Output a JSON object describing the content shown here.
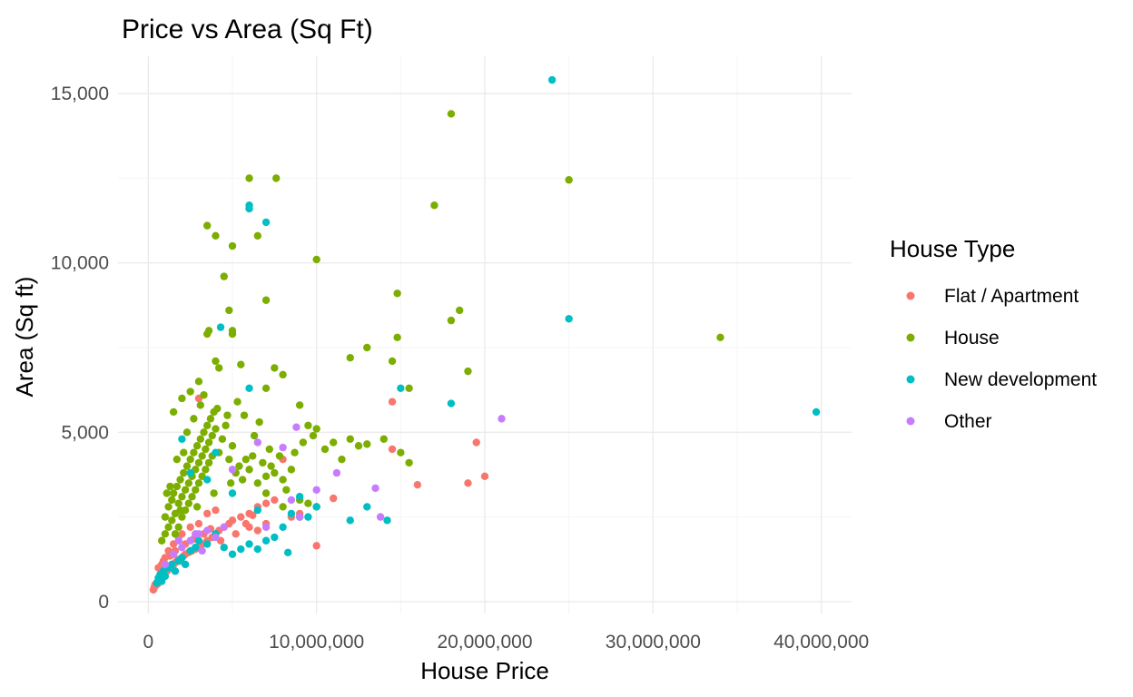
{
  "chart_data": {
    "type": "scatter",
    "title": "Price vs Area (Sq Ft)",
    "xlabel": "House Price",
    "ylabel": "Area (Sq ft)",
    "xlim": [
      -1800000,
      41800000
    ],
    "ylim": [
      -350,
      16100
    ],
    "x_ticks": [
      0,
      10000000,
      20000000,
      30000000,
      40000000
    ],
    "x_tick_labels": [
      "0",
      "10,000,000",
      "20,000,000",
      "30,000,000",
      "40,000,000"
    ],
    "y_ticks": [
      0,
      5000,
      10000,
      15000
    ],
    "y_tick_labels": [
      "0",
      "5,000",
      "10,000",
      "15,000"
    ],
    "grid": true,
    "legend": {
      "title": "House Type",
      "position": "right"
    },
    "series": [
      {
        "name": "Flat / Apartment",
        "color": "#F8766D",
        "points": [
          [
            300000,
            350
          ],
          [
            350000,
            420
          ],
          [
            400000,
            500
          ],
          [
            450000,
            480
          ],
          [
            500000,
            560
          ],
          [
            550000,
            520
          ],
          [
            600000,
            640
          ],
          [
            650000,
            600
          ],
          [
            700000,
            700
          ],
          [
            750000,
            680
          ],
          [
            800000,
            760
          ],
          [
            850000,
            720
          ],
          [
            900000,
            820
          ],
          [
            950000,
            780
          ],
          [
            1000000,
            880
          ],
          [
            1100000,
            900
          ],
          [
            1200000,
            950
          ],
          [
            1300000,
            1000
          ],
          [
            1400000,
            1050
          ],
          [
            1500000,
            1100
          ],
          [
            1600000,
            1150
          ],
          [
            1700000,
            1200
          ],
          [
            1800000,
            1250
          ],
          [
            1900000,
            1200
          ],
          [
            2000000,
            1300
          ],
          [
            2100000,
            1350
          ],
          [
            2200000,
            1400
          ],
          [
            2400000,
            1450
          ],
          [
            2600000,
            1500
          ],
          [
            2800000,
            1550
          ],
          [
            3000000,
            1600
          ],
          [
            3200000,
            1700
          ],
          [
            3500000,
            1800
          ],
          [
            3800000,
            1900
          ],
          [
            4000000,
            2000
          ],
          [
            4200000,
            2100
          ],
          [
            4500000,
            2200
          ],
          [
            4800000,
            2300
          ],
          [
            5000000,
            2400
          ],
          [
            5500000,
            2500
          ],
          [
            6000000,
            2600
          ],
          [
            6500000,
            2800
          ],
          [
            7000000,
            2900
          ],
          [
            7500000,
            3000
          ],
          [
            800000,
            1100
          ],
          [
            1000000,
            1300
          ],
          [
            1200000,
            1500
          ],
          [
            1500000,
            1700
          ],
          [
            1800000,
            1900
          ],
          [
            2000000,
            2000
          ],
          [
            2500000,
            2200
          ],
          [
            3000000,
            2300
          ],
          [
            3000000,
            6000
          ],
          [
            3500000,
            2600
          ],
          [
            4000000,
            2700
          ],
          [
            6000000,
            2200
          ],
          [
            6500000,
            2100
          ],
          [
            7000000,
            2300
          ],
          [
            8000000,
            4200
          ],
          [
            8500000,
            2500
          ],
          [
            9000000,
            2600
          ],
          [
            10000000,
            1650
          ],
          [
            11000000,
            3050
          ],
          [
            14500000,
            5900
          ],
          [
            14500000,
            4500
          ],
          [
            16000000,
            3450
          ],
          [
            19000000,
            3500
          ],
          [
            19500000,
            4700
          ],
          [
            20000000,
            3700
          ],
          [
            600000,
            1000
          ],
          [
            900000,
            1200
          ],
          [
            1300000,
            1350
          ],
          [
            1600000,
            1500
          ],
          [
            2200000,
            1700
          ],
          [
            2700000,
            1850
          ],
          [
            3300000,
            2000
          ],
          [
            3700000,
            2150
          ],
          [
            4300000,
            1800
          ],
          [
            5200000,
            2000
          ],
          [
            5800000,
            2300
          ],
          [
            6200000,
            2550
          ]
        ]
      },
      {
        "name": "House",
        "color": "#7CAE00",
        "points": [
          [
            1000000,
            2500
          ],
          [
            1200000,
            2800
          ],
          [
            1400000,
            3000
          ],
          [
            1500000,
            3200
          ],
          [
            1600000,
            2600
          ],
          [
            1700000,
            3400
          ],
          [
            1800000,
            2900
          ],
          [
            1900000,
            3600
          ],
          [
            2000000,
            3100
          ],
          [
            2100000,
            3800
          ],
          [
            2200000,
            3300
          ],
          [
            2300000,
            4000
          ],
          [
            2400000,
            3500
          ],
          [
            2500000,
            4200
          ],
          [
            2600000,
            3700
          ],
          [
            2700000,
            4400
          ],
          [
            2800000,
            3900
          ],
          [
            2900000,
            4600
          ],
          [
            3000000,
            4100
          ],
          [
            3100000,
            4800
          ],
          [
            3200000,
            4300
          ],
          [
            3300000,
            5000
          ],
          [
            3400000,
            4500
          ],
          [
            3500000,
            5200
          ],
          [
            3600000,
            4700
          ],
          [
            3700000,
            5400
          ],
          [
            3800000,
            4900
          ],
          [
            3900000,
            5600
          ],
          [
            4000000,
            5100
          ],
          [
            4200000,
            4400
          ],
          [
            4400000,
            4800
          ],
          [
            4600000,
            5200
          ],
          [
            4800000,
            4200
          ],
          [
            5000000,
            4600
          ],
          [
            5200000,
            3800
          ],
          [
            5400000,
            4000
          ],
          [
            5600000,
            3600
          ],
          [
            5800000,
            4200
          ],
          [
            6000000,
            3900
          ],
          [
            6200000,
            4300
          ],
          [
            6500000,
            3500
          ],
          [
            6800000,
            4100
          ],
          [
            7000000,
            3700
          ],
          [
            7200000,
            4500
          ],
          [
            7500000,
            3800
          ],
          [
            7800000,
            4300
          ],
          [
            8000000,
            3600
          ],
          [
            8500000,
            3900
          ],
          [
            9000000,
            5800
          ],
          [
            9500000,
            5200
          ],
          [
            10000000,
            5100
          ],
          [
            11000000,
            4700
          ],
          [
            12000000,
            4800
          ],
          [
            12500000,
            4600
          ],
          [
            13000000,
            4650
          ],
          [
            14000000,
            4800
          ],
          [
            15000000,
            4400
          ],
          [
            15500000,
            4100
          ],
          [
            1500000,
            5600
          ],
          [
            2000000,
            6000
          ],
          [
            2500000,
            6200
          ],
          [
            3000000,
            6500
          ],
          [
            3500000,
            7900
          ],
          [
            3600000,
            8000
          ],
          [
            4000000,
            7100
          ],
          [
            4200000,
            6900
          ],
          [
            4500000,
            9600
          ],
          [
            4800000,
            8600
          ],
          [
            5000000,
            7900
          ],
          [
            5000000,
            8000
          ],
          [
            5500000,
            7000
          ],
          [
            6000000,
            12500
          ],
          [
            6500000,
            10800
          ],
          [
            7000000,
            8900
          ],
          [
            7000000,
            6300
          ],
          [
            7500000,
            6900
          ],
          [
            7600000,
            12500
          ],
          [
            8000000,
            6700
          ],
          [
            3500000,
            11100
          ],
          [
            4000000,
            10800
          ],
          [
            5000000,
            10500
          ],
          [
            10000000,
            10100
          ],
          [
            12000000,
            7200
          ],
          [
            13000000,
            7500
          ],
          [
            14500000,
            7100
          ],
          [
            14800000,
            9100
          ],
          [
            14800000,
            7800
          ],
          [
            15500000,
            6300
          ],
          [
            17000000,
            11700
          ],
          [
            18000000,
            14400
          ],
          [
            18000000,
            8300
          ],
          [
            18500000,
            8600
          ],
          [
            19000000,
            6800
          ],
          [
            25000000,
            12450
          ],
          [
            34000000,
            7800
          ],
          [
            800000,
            1800
          ],
          [
            1000000,
            2000
          ],
          [
            1200000,
            2200
          ],
          [
            1400000,
            2400
          ],
          [
            1600000,
            2000
          ],
          [
            1800000,
            2200
          ],
          [
            2000000,
            2500
          ],
          [
            2200000,
            2700
          ],
          [
            2400000,
            2900
          ],
          [
            2600000,
            3100
          ],
          [
            2800000,
            3300
          ],
          [
            3000000,
            3500
          ],
          [
            3200000,
            3700
          ],
          [
            3400000,
            3900
          ],
          [
            3600000,
            4100
          ],
          [
            3800000,
            4300
          ],
          [
            1100000,
            3200
          ],
          [
            1300000,
            3400
          ],
          [
            1700000,
            4200
          ],
          [
            2100000,
            4400
          ],
          [
            2300000,
            5000
          ],
          [
            2700000,
            5400
          ],
          [
            3100000,
            5800
          ],
          [
            3300000,
            6100
          ],
          [
            5700000,
            5500
          ],
          [
            6300000,
            4900
          ],
          [
            6600000,
            5300
          ],
          [
            8700000,
            4400
          ],
          [
            9200000,
            4700
          ],
          [
            9800000,
            4900
          ],
          [
            10500000,
            4500
          ],
          [
            11500000,
            4200
          ],
          [
            4100000,
            5700
          ],
          [
            4700000,
            5500
          ],
          [
            5300000,
            5900
          ],
          [
            7300000,
            4000
          ],
          [
            8200000,
            3300
          ],
          [
            9000000,
            3000
          ],
          [
            9500000,
            2900
          ],
          [
            10000000,
            2800
          ],
          [
            7000000,
            3200
          ],
          [
            8000000,
            2800
          ],
          [
            1900000,
            2700
          ],
          [
            2900000,
            2800
          ],
          [
            3900000,
            3200
          ],
          [
            4900000,
            3500
          ]
        ]
      },
      {
        "name": "New development",
        "color": "#00BFC4",
        "points": [
          [
            500000,
            550
          ],
          [
            600000,
            700
          ],
          [
            700000,
            800
          ],
          [
            800000,
            600
          ],
          [
            900000,
            900
          ],
          [
            1000000,
            750
          ],
          [
            1200000,
            1000
          ],
          [
            1400000,
            1100
          ],
          [
            1600000,
            900
          ],
          [
            1800000,
            1200
          ],
          [
            2000000,
            1300
          ],
          [
            2200000,
            1100
          ],
          [
            2500000,
            1500
          ],
          [
            2800000,
            1600
          ],
          [
            3000000,
            1800
          ],
          [
            3500000,
            1700
          ],
          [
            4000000,
            2000
          ],
          [
            4500000,
            1600
          ],
          [
            5000000,
            1400
          ],
          [
            5500000,
            1550
          ],
          [
            6000000,
            1700
          ],
          [
            6500000,
            1550
          ],
          [
            7000000,
            1800
          ],
          [
            7500000,
            1900
          ],
          [
            8000000,
            2200
          ],
          [
            8300000,
            1450
          ],
          [
            9000000,
            2500
          ],
          [
            9500000,
            2500
          ],
          [
            10000000,
            2800
          ],
          [
            12000000,
            2400
          ],
          [
            13000000,
            2800
          ],
          [
            14200000,
            2400
          ],
          [
            15000000,
            6300
          ],
          [
            18000000,
            5850
          ],
          [
            24000000,
            15400
          ],
          [
            25000000,
            8350
          ],
          [
            39700000,
            5600
          ],
          [
            4300000,
            8100
          ],
          [
            6000000,
            11700
          ],
          [
            6000000,
            11600
          ],
          [
            7000000,
            11200
          ],
          [
            6000000,
            6300
          ],
          [
            4000000,
            4400
          ],
          [
            3500000,
            3600
          ],
          [
            2500000,
            3800
          ],
          [
            2000000,
            4800
          ],
          [
            5000000,
            3200
          ],
          [
            6500000,
            2700
          ],
          [
            9000000,
            3100
          ],
          [
            8500000,
            2600
          ]
        ]
      },
      {
        "name": "Other",
        "color": "#C77CFF",
        "points": [
          [
            1000000,
            1100
          ],
          [
            1500000,
            1400
          ],
          [
            2000000,
            1600
          ],
          [
            2500000,
            1800
          ],
          [
            3000000,
            2000
          ],
          [
            3500000,
            2100
          ],
          [
            4000000,
            1900
          ],
          [
            4500000,
            2200
          ],
          [
            5000000,
            3900
          ],
          [
            6500000,
            4700
          ],
          [
            8000000,
            4550
          ],
          [
            8800000,
            5150
          ],
          [
            8500000,
            3000
          ],
          [
            9000000,
            2500
          ],
          [
            10000000,
            3300
          ],
          [
            11200000,
            3800
          ],
          [
            13500000,
            3350
          ],
          [
            13800000,
            2500
          ],
          [
            21000000,
            5400
          ],
          [
            1800000,
            1800
          ],
          [
            2800000,
            2000
          ],
          [
            3200000,
            1500
          ],
          [
            7000000,
            2200
          ]
        ]
      }
    ]
  }
}
